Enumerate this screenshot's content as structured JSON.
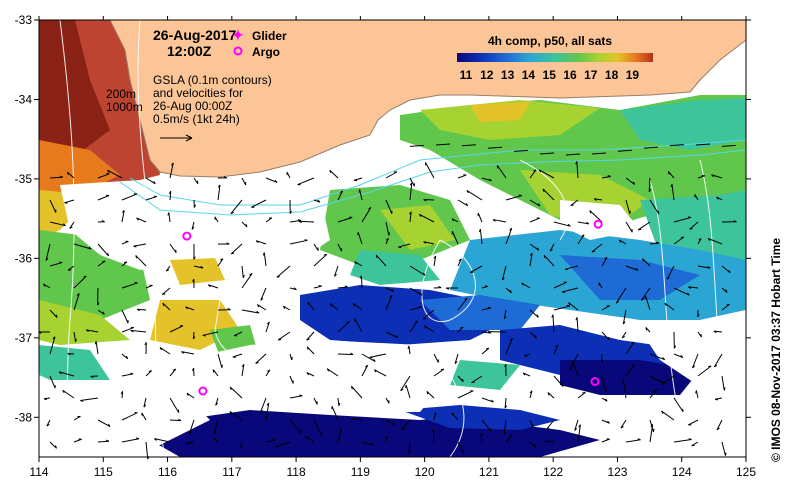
{
  "map": {
    "date": "26-Aug-2017",
    "time": "12:00Z",
    "legend": {
      "glider_label": "Glider",
      "argo_label": "Argo",
      "glider_color": "#ff00ff",
      "argo_color": "#ff00ff"
    },
    "gsla_note": [
      "GSLA (0.1m contours)",
      "and velocities for",
      "26-Aug 00:00Z",
      "0.5m/s (1kt 24h)"
    ],
    "isobath_labels": [
      "200m",
      "1000m"
    ],
    "colorbar": {
      "title": "4h comp, p50, all sats",
      "ticks": [
        "11",
        "12",
        "13",
        "14",
        "15",
        "16",
        "17",
        "18",
        "19"
      ],
      "colors": [
        "#08087a",
        "#0c2fb6",
        "#1f6bd6",
        "#2ba6d4",
        "#3dc49b",
        "#61c64c",
        "#a7d332",
        "#e4c22a",
        "#e87a1e",
        "#b5301b"
      ]
    },
    "x_axis_ticks": [
      "114",
      "115",
      "116",
      "117",
      "118",
      "119",
      "120",
      "121",
      "122",
      "123",
      "124",
      "125"
    ],
    "y_axis_ticks": [
      "-33",
      "-34",
      "-35",
      "-36",
      "-37",
      "-38"
    ],
    "credit": "© IMOS 08-Nov-2017 03:37 Hobart Time",
    "colors": {
      "land": "#fbc597",
      "coast": "#9a7d66",
      "contour": "#ffffff",
      "isobath": "#5ad6e6"
    },
    "argo_floats": [
      {
        "lon": 116.3,
        "lat": -35.72
      },
      {
        "lon": 122.7,
        "lat": -35.57
      },
      {
        "lon": 116.55,
        "lat": -37.67
      },
      {
        "lon": 122.65,
        "lat": -37.55
      }
    ]
  }
}
